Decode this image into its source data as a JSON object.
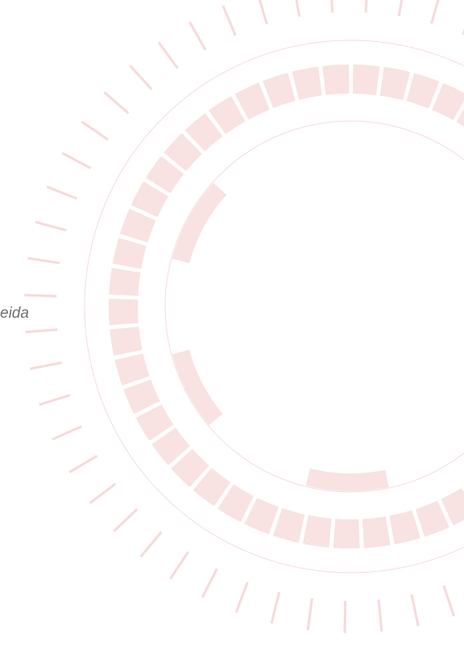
{
  "caption": "eida"
}
